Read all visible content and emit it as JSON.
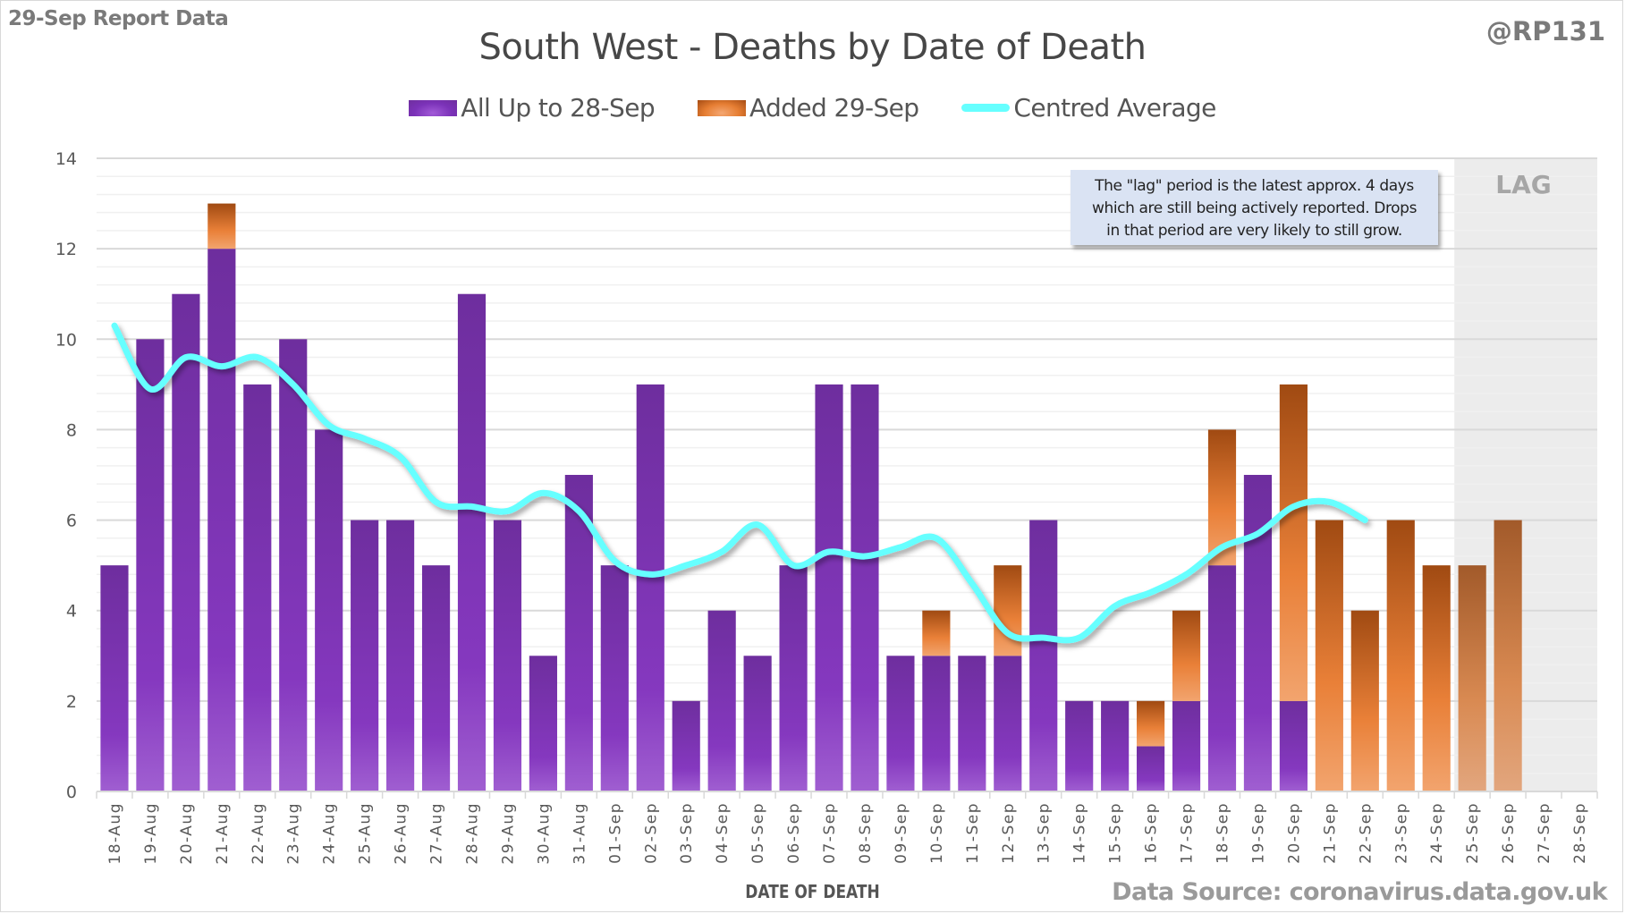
{
  "header": {
    "report_label": "29-Sep Report Data",
    "handle": "@RP131",
    "title": "South West - Deaths by Date of Death"
  },
  "legend": {
    "items": [
      {
        "label": "All Up to 28-Sep",
        "icon": "purple-bar-swatch"
      },
      {
        "label": "Added 29-Sep",
        "icon": "orange-bar-swatch"
      },
      {
        "label": "Centred Average",
        "icon": "cyan-line-swatch"
      }
    ]
  },
  "annotation": {
    "note_lines": [
      "The \"lag\" period is the latest approx. 4 days",
      "which are still being actively reported. Drops",
      "in that period are very likely to still grow."
    ],
    "lag_label": "LAG"
  },
  "footer": {
    "xlabel": "DATE OF DEATH",
    "source": "Data Source: coronavirus.data.gov.uk"
  },
  "colors": {
    "base_series": "#7b32b8",
    "added_series": "#e67e33",
    "average_line": "#66ffff",
    "lag_shade": "#ececec",
    "note_box": "#dae3f3"
  },
  "chart_data": {
    "type": "bar",
    "stacked": true,
    "title": "South West - Deaths by Date of Death",
    "xlabel": "DATE OF DEATH",
    "ylabel": "",
    "ylim": [
      0,
      14
    ],
    "yticks": [
      0,
      2,
      4,
      6,
      8,
      10,
      12,
      14
    ],
    "grid": true,
    "legend_position": "top-center",
    "lag_period": [
      "25-Sep",
      "28-Sep"
    ],
    "categories": [
      "18-Aug",
      "19-Aug",
      "20-Aug",
      "21-Aug",
      "22-Aug",
      "23-Aug",
      "24-Aug",
      "25-Aug",
      "26-Aug",
      "27-Aug",
      "28-Aug",
      "29-Aug",
      "30-Aug",
      "31-Aug",
      "01-Sep",
      "02-Sep",
      "03-Sep",
      "04-Sep",
      "05-Sep",
      "06-Sep",
      "07-Sep",
      "08-Sep",
      "09-Sep",
      "10-Sep",
      "11-Sep",
      "12-Sep",
      "13-Sep",
      "14-Sep",
      "15-Sep",
      "16-Sep",
      "17-Sep",
      "18-Sep",
      "19-Sep",
      "20-Sep",
      "21-Sep",
      "22-Sep",
      "23-Sep",
      "24-Sep",
      "25-Sep",
      "26-Sep",
      "27-Sep",
      "28-Sep"
    ],
    "series": [
      {
        "name": "All Up to 28-Sep",
        "type": "bar",
        "values": [
          5,
          10,
          11,
          12,
          9,
          10,
          8,
          6,
          6,
          5,
          11,
          6,
          3,
          7,
          5,
          9,
          2,
          4,
          3,
          5,
          9,
          9,
          3,
          3,
          3,
          3,
          6,
          2,
          2,
          1,
          2,
          5,
          7,
          2,
          0,
          0,
          0,
          0,
          0,
          0,
          0,
          0
        ]
      },
      {
        "name": "Added 29-Sep",
        "type": "bar",
        "values": [
          0,
          0,
          0,
          1,
          0,
          0,
          0,
          0,
          0,
          0,
          0,
          0,
          0,
          0,
          0,
          0,
          0,
          0,
          0,
          0,
          0,
          0,
          0,
          1,
          0,
          2,
          0,
          0,
          0,
          1,
          2,
          3,
          0,
          7,
          6,
          4,
          6,
          5,
          5,
          6,
          0,
          0
        ]
      },
      {
        "name": "Centred Average",
        "type": "line",
        "values": [
          10.3,
          8.9,
          9.6,
          9.4,
          9.6,
          9.0,
          8.1,
          7.8,
          7.4,
          6.4,
          6.3,
          6.2,
          6.6,
          6.2,
          5.1,
          4.8,
          5.0,
          5.3,
          5.9,
          5.0,
          5.3,
          5.2,
          5.4,
          5.6,
          4.6,
          3.5,
          3.4,
          3.4,
          4.1,
          4.4,
          4.8,
          5.4,
          5.7,
          6.3,
          6.4,
          6.0,
          null,
          null,
          null,
          null,
          null,
          null
        ]
      }
    ]
  }
}
